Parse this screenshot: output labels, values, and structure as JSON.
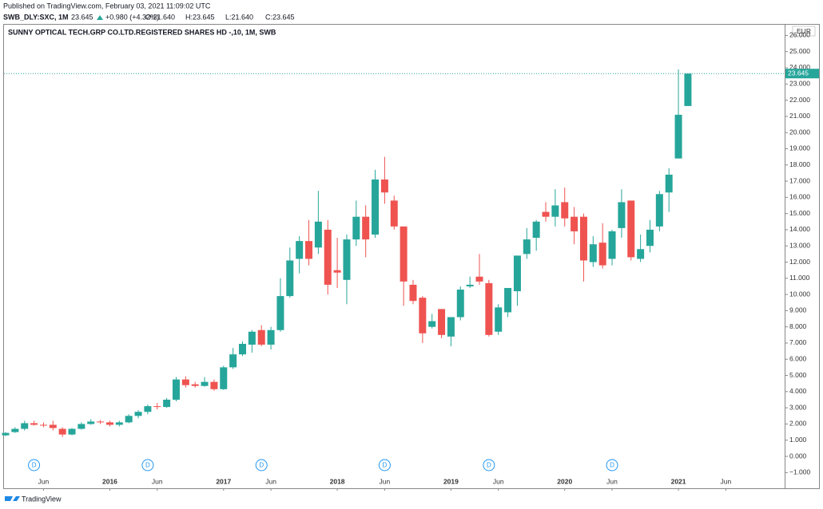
{
  "header": {
    "published": "Published on TradingView.com, February 03, 2021 11:09:02 UTC",
    "symbol": "SWB_DLY:SXC, 1M",
    "price": "23.645",
    "change": "+0.980 (+4.32%)",
    "ohlc": [
      "O:21.640",
      "H:23.645",
      "L:21.640",
      "C:23.645"
    ]
  },
  "footer": {
    "brand": "TradingView"
  },
  "chart_data": {
    "type": "candlestick",
    "title": "SUNNY OPTICAL TECH.GRP CO.LTD.REGISTERED SHARES HD -,10, 1M, SWB",
    "currency": "EUR",
    "x": [
      "2015-02",
      "2015-03",
      "2015-04",
      "2015-05",
      "2015-06",
      "2015-07",
      "2015-08",
      "2015-09",
      "2015-10",
      "2015-11",
      "2015-12",
      "2016-01",
      "2016-02",
      "2016-03",
      "2016-04",
      "2016-05",
      "2016-06",
      "2016-07",
      "2016-08",
      "2016-09",
      "2016-10",
      "2016-11",
      "2016-12",
      "2017-01",
      "2017-02",
      "2017-03",
      "2017-04",
      "2017-05",
      "2017-06",
      "2017-07",
      "2017-08",
      "2017-09",
      "2017-10",
      "2017-11",
      "2017-12",
      "2018-01",
      "2018-02",
      "2018-03",
      "2018-04",
      "2018-05",
      "2018-06",
      "2018-07",
      "2018-08",
      "2018-09",
      "2018-10",
      "2018-11",
      "2018-12",
      "2019-01",
      "2019-02",
      "2019-03",
      "2019-04",
      "2019-05",
      "2019-06",
      "2019-07",
      "2019-08",
      "2019-09",
      "2019-10",
      "2019-11",
      "2019-12",
      "2020-01",
      "2020-02",
      "2020-03",
      "2020-04",
      "2020-05",
      "2020-06",
      "2020-07",
      "2020-08",
      "2020-09",
      "2020-10",
      "2020-11",
      "2020-12",
      "2021-01",
      "2021-02"
    ],
    "open": [
      1.3,
      1.5,
      1.7,
      2.05,
      1.95,
      1.95,
      1.7,
      1.35,
      1.7,
      2.0,
      2.15,
      2.1,
      1.95,
      2.1,
      2.5,
      2.75,
      3.1,
      3.05,
      3.5,
      4.75,
      4.45,
      4.35,
      4.6,
      4.15,
      5.5,
      6.3,
      6.9,
      7.8,
      6.9,
      7.8,
      9.9,
      12.2,
      13.3,
      12.9,
      14.0,
      11.5,
      10.9,
      13.4,
      14.8,
      13.7,
      17.1,
      15.8,
      14.2,
      10.6,
      9.8,
      8.0,
      9.1,
      7.4,
      8.6,
      10.5,
      11.1,
      10.7,
      7.7,
      8.9,
      10.2,
      12.5,
      13.5,
      15.1,
      14.8,
      15.7,
      14.8,
      14.8,
      12.0,
      13.2,
      12.2,
      14.1,
      15.8,
      12.2,
      13.0,
      14.2,
      16.3,
      18.4,
      21.64
    ],
    "high": [
      1.5,
      1.8,
      2.2,
      2.2,
      2.1,
      2.2,
      1.8,
      1.75,
      2.1,
      2.3,
      2.25,
      2.2,
      2.2,
      2.6,
      2.85,
      3.2,
      3.3,
      3.6,
      4.9,
      4.95,
      4.6,
      4.9,
      4.75,
      5.6,
      6.7,
      7.1,
      7.8,
      8.1,
      8.0,
      11.0,
      12.9,
      13.6,
      14.6,
      16.4,
      14.6,
      13.5,
      13.7,
      15.8,
      15.5,
      17.7,
      18.5,
      16.1,
      14.2,
      10.9,
      9.9,
      8.8,
      9.1,
      8.6,
      10.5,
      11.1,
      12.5,
      10.9,
      9.4,
      10.4,
      12.4,
      14.1,
      14.6,
      15.7,
      16.5,
      16.6,
      15.4,
      15.0,
      13.6,
      14.4,
      14.0,
      16.5,
      15.8,
      13.7,
      14.6,
      16.4,
      17.8,
      23.9,
      23.645
    ],
    "low": [
      1.25,
      1.45,
      1.6,
      1.9,
      1.8,
      1.6,
      1.2,
      1.3,
      1.65,
      1.95,
      2.0,
      1.85,
      1.85,
      2.05,
      2.35,
      2.6,
      2.9,
      3.0,
      3.4,
      4.25,
      4.25,
      4.3,
      4.05,
      4.1,
      5.4,
      6.2,
      6.4,
      6.8,
      6.6,
      7.7,
      9.8,
      11.3,
      11.8,
      12.5,
      10.0,
      10.4,
      9.4,
      13.0,
      12.3,
      13.5,
      15.6,
      14.0,
      9.3,
      9.4,
      7.0,
      7.9,
      7.3,
      6.8,
      8.4,
      10.4,
      10.6,
      7.4,
      7.5,
      8.6,
      9.3,
      12.2,
      12.7,
      14.5,
      14.2,
      14.2,
      13.1,
      10.8,
      11.7,
      11.6,
      11.8,
      13.5,
      12.1,
      12.0,
      12.6,
      13.9,
      15.1,
      18.4,
      21.64
    ],
    "close": [
      1.45,
      1.7,
      2.05,
      1.95,
      1.9,
      1.75,
      1.35,
      1.7,
      2.0,
      2.15,
      2.1,
      1.95,
      2.1,
      2.5,
      2.75,
      3.1,
      3.05,
      3.5,
      4.75,
      4.4,
      4.35,
      4.6,
      4.15,
      5.5,
      6.3,
      6.95,
      7.7,
      6.9,
      7.8,
      9.9,
      12.1,
      13.3,
      12.2,
      14.5,
      10.6,
      11.35,
      13.4,
      14.8,
      13.4,
      17.1,
      16.3,
      14.2,
      10.8,
      9.6,
      7.6,
      8.35,
      7.5,
      8.6,
      10.3,
      10.6,
      10.8,
      7.5,
      9.2,
      10.4,
      12.4,
      13.4,
      14.5,
      14.8,
      15.5,
      14.7,
      13.9,
      12.1,
      13.1,
      11.8,
      13.9,
      15.7,
      12.3,
      12.8,
      14.0,
      16.2,
      17.4,
      21.1,
      23.645
    ],
    "up_color": "#26a69a",
    "down_color": "#ef5350",
    "last_price": 23.645,
    "markers": [
      {
        "x": "2015-05",
        "label": "D"
      },
      {
        "x": "2016-05",
        "label": "D"
      },
      {
        "x": "2017-05",
        "label": "D"
      },
      {
        "x": "2018-06",
        "label": "D"
      },
      {
        "x": "2019-05",
        "label": "D"
      },
      {
        "x": "2020-06",
        "label": "D"
      }
    ],
    "ylim": [
      -1.97,
      26.71
    ],
    "yticks": [
      {
        "value": -1,
        "label": "−1.000"
      },
      {
        "value": 0,
        "label": "0.000"
      },
      {
        "value": 1,
        "label": "1.000"
      },
      {
        "value": 2,
        "label": "2.000"
      },
      {
        "value": 3,
        "label": "3.000"
      },
      {
        "value": 4,
        "label": "4.000"
      },
      {
        "value": 5,
        "label": "5.000"
      },
      {
        "value": 6,
        "label": "6.000"
      },
      {
        "value": 7,
        "label": "7.000"
      },
      {
        "value": 8,
        "label": "8.000"
      },
      {
        "value": 9,
        "label": "9.000"
      },
      {
        "value": 10,
        "label": "10.000"
      },
      {
        "value": 11,
        "label": "11.000"
      },
      {
        "value": 12,
        "label": "12.000"
      },
      {
        "value": 13,
        "label": "13.000"
      },
      {
        "value": 14,
        "label": "14.000"
      },
      {
        "value": 15,
        "label": "15.000"
      },
      {
        "value": 16,
        "label": "16.000"
      },
      {
        "value": 17,
        "label": "17.000"
      },
      {
        "value": 18,
        "label": "18.000"
      },
      {
        "value": 19,
        "label": "19.000"
      },
      {
        "value": 20,
        "label": "20.000"
      },
      {
        "value": 21,
        "label": "21.000"
      },
      {
        "value": 22,
        "label": "22.000"
      },
      {
        "value": 23,
        "label": "23.000"
      },
      {
        "value": 24,
        "label": "24.000"
      },
      {
        "value": 25,
        "label": "25.000"
      },
      {
        "value": 26,
        "label": "26.000"
      }
    ],
    "xticks": [
      {
        "value": "2015-06",
        "label": "Jun"
      },
      {
        "value": "2016-01",
        "label": "2016"
      },
      {
        "value": "2016-06",
        "label": "Jun"
      },
      {
        "value": "2017-01",
        "label": "2017"
      },
      {
        "value": "2017-06",
        "label": "Jun"
      },
      {
        "value": "2018-01",
        "label": "2018"
      },
      {
        "value": "2018-06",
        "label": "Jun"
      },
      {
        "value": "2019-01",
        "label": "2019"
      },
      {
        "value": "2019-06",
        "label": "Jun"
      },
      {
        "value": "2020-01",
        "label": "2020"
      },
      {
        "value": "2020-06",
        "label": "Jun"
      },
      {
        "value": "2021-01",
        "label": "2021"
      },
      {
        "value": "2021-06",
        "label": "Jun"
      }
    ]
  }
}
